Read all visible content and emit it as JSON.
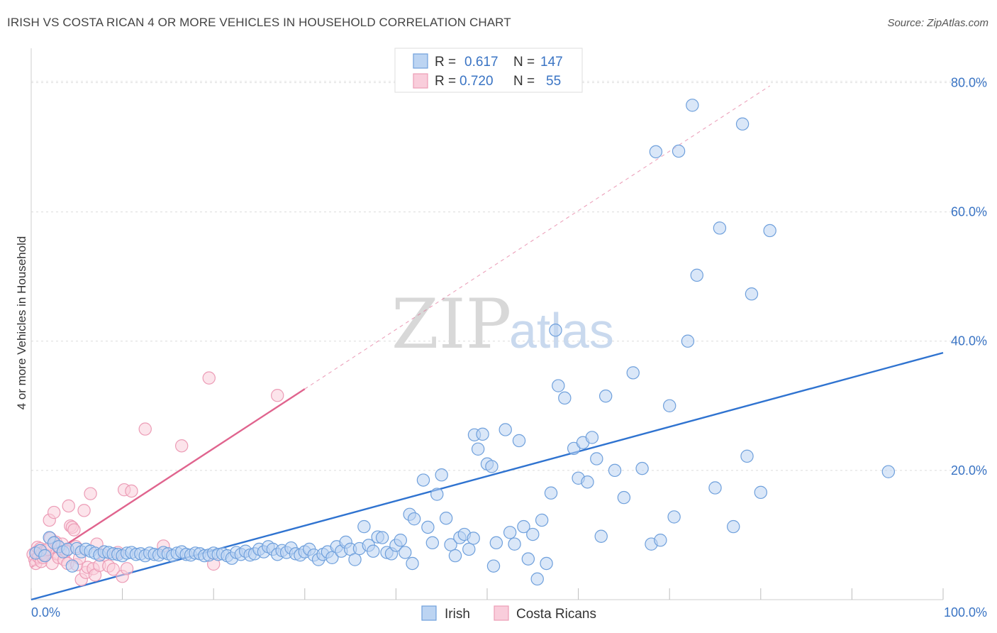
{
  "chart_data": {
    "type": "scatter",
    "title": "IRISH VS COSTA RICAN 4 OR MORE VEHICLES IN HOUSEHOLD CORRELATION CHART",
    "source": "Source: ZipAtlas.com",
    "ylabel": "4 or more Vehicles in Household",
    "xlabel": "",
    "xlim": [
      0,
      100
    ],
    "ylim": [
      0,
      84
    ],
    "x_tick_labels": [
      "0.0%",
      "100.0%"
    ],
    "y_tick_labels": [
      "20.0%",
      "40.0%",
      "60.0%",
      "80.0%"
    ],
    "y_ticks": [
      20,
      40,
      60,
      80
    ],
    "watermark": {
      "part1": "ZIP",
      "part2": "atlas"
    },
    "legend": {
      "r_label": "R =",
      "n_label": "N =",
      "entries": [
        {
          "r": "0.617",
          "n": "147"
        },
        {
          "r": "0.720",
          "n": "55"
        }
      ]
    },
    "series": [
      {
        "name": "Irish",
        "color": "#6fa0dc",
        "fill": "#bcd4f2",
        "line_color": "#2f73d0",
        "regression": {
          "x0": 0,
          "y0": 0,
          "x1": 100,
          "y1": 38.2,
          "dashed_to": null
        },
        "points": [
          [
            0.5,
            7.2
          ],
          [
            1,
            7.6
          ],
          [
            1.5,
            6.8
          ],
          [
            2,
            9.6
          ],
          [
            2.5,
            8.8
          ],
          [
            3,
            8.2
          ],
          [
            3.5,
            7.4
          ],
          [
            4,
            7.8
          ],
          [
            4.5,
            5.2
          ],
          [
            5,
            7.9
          ],
          [
            5.5,
            7.4
          ],
          [
            6,
            7.8
          ],
          [
            6.5,
            7.5
          ],
          [
            7,
            7.2
          ],
          [
            7.5,
            6.9
          ],
          [
            8,
            7.4
          ],
          [
            8.5,
            7.3
          ],
          [
            9,
            7.1
          ],
          [
            9.5,
            7.0
          ],
          [
            10,
            6.8
          ],
          [
            10.5,
            7.2
          ],
          [
            11,
            7.3
          ],
          [
            11.5,
            7.0
          ],
          [
            12,
            7.1
          ],
          [
            12.5,
            6.8
          ],
          [
            13,
            7.2
          ],
          [
            13.5,
            7.0
          ],
          [
            14,
            6.9
          ],
          [
            14.5,
            7.3
          ],
          [
            15,
            7.1
          ],
          [
            15.5,
            6.8
          ],
          [
            16,
            7.2
          ],
          [
            16.5,
            7.4
          ],
          [
            17,
            7.0
          ],
          [
            17.5,
            6.9
          ],
          [
            18,
            7.2
          ],
          [
            18.5,
            7.1
          ],
          [
            19,
            6.8
          ],
          [
            19.5,
            6.9
          ],
          [
            20,
            7.2
          ],
          [
            20.5,
            7.0
          ],
          [
            21,
            7.1
          ],
          [
            21.5,
            6.8
          ],
          [
            22,
            6.4
          ],
          [
            22.5,
            7.3
          ],
          [
            23,
            7.0
          ],
          [
            23.5,
            7.5
          ],
          [
            24,
            6.9
          ],
          [
            24.5,
            7.1
          ],
          [
            25,
            7.8
          ],
          [
            25.5,
            7.4
          ],
          [
            26,
            8.2
          ],
          [
            26.5,
            7.8
          ],
          [
            27,
            7.0
          ],
          [
            27.5,
            7.6
          ],
          [
            28,
            7.3
          ],
          [
            28.5,
            8.0
          ],
          [
            29,
            7.1
          ],
          [
            29.5,
            6.9
          ],
          [
            30,
            7.4
          ],
          [
            30.5,
            7.8
          ],
          [
            31,
            6.9
          ],
          [
            31.5,
            6.2
          ],
          [
            32,
            7.0
          ],
          [
            32.5,
            7.4
          ],
          [
            33,
            6.5
          ],
          [
            33.5,
            8.2
          ],
          [
            34,
            7.5
          ],
          [
            34.5,
            8.9
          ],
          [
            35,
            7.8
          ],
          [
            35.5,
            6.2
          ],
          [
            36,
            7.9
          ],
          [
            36.5,
            11.3
          ],
          [
            37,
            8.4
          ],
          [
            37.5,
            7.5
          ],
          [
            38,
            9.7
          ],
          [
            38.5,
            9.6
          ],
          [
            39,
            7.3
          ],
          [
            39.5,
            7.1
          ],
          [
            40,
            8.4
          ],
          [
            40.5,
            9.2
          ],
          [
            41,
            7.3
          ],
          [
            41.5,
            13.2
          ],
          [
            41.8,
            5.6
          ],
          [
            42,
            12.5
          ],
          [
            43,
            18.5
          ],
          [
            43.5,
            11.2
          ],
          [
            44,
            8.8
          ],
          [
            44.5,
            16.3
          ],
          [
            45,
            19.3
          ],
          [
            45.5,
            12.6
          ],
          [
            46,
            8.5
          ],
          [
            46.5,
            6.8
          ],
          [
            47,
            9.6
          ],
          [
            47.5,
            10.1
          ],
          [
            48,
            7.8
          ],
          [
            48.5,
            9.5
          ],
          [
            48.6,
            25.5
          ],
          [
            49,
            23.3
          ],
          [
            49.5,
            25.6
          ],
          [
            50,
            21.0
          ],
          [
            50.5,
            20.6
          ],
          [
            50.7,
            5.2
          ],
          [
            51,
            8.8
          ],
          [
            52,
            26.3
          ],
          [
            52.5,
            10.4
          ],
          [
            53,
            8.6
          ],
          [
            53.5,
            24.6
          ],
          [
            54,
            11.3
          ],
          [
            54.5,
            6.3
          ],
          [
            55,
            10.1
          ],
          [
            55.5,
            3.2
          ],
          [
            56,
            12.3
          ],
          [
            56.5,
            5.6
          ],
          [
            57,
            16.5
          ],
          [
            57.5,
            41.7
          ],
          [
            57.8,
            33.1
          ],
          [
            58.5,
            31.2
          ],
          [
            59.5,
            23.4
          ],
          [
            60,
            18.8
          ],
          [
            60.5,
            24.3
          ],
          [
            61,
            18.2
          ],
          [
            61.5,
            25.1
          ],
          [
            62,
            21.8
          ],
          [
            62.5,
            9.8
          ],
          [
            63,
            31.5
          ],
          [
            64,
            20.0
          ],
          [
            65,
            15.8
          ],
          [
            66,
            35.1
          ],
          [
            67,
            20.3
          ],
          [
            68,
            8.6
          ],
          [
            68.5,
            69.3
          ],
          [
            69,
            9.2
          ],
          [
            70,
            30.0
          ],
          [
            70.5,
            12.8
          ],
          [
            71,
            69.4
          ],
          [
            72,
            40.0
          ],
          [
            72.5,
            76.5
          ],
          [
            73,
            50.2
          ],
          [
            75,
            17.3
          ],
          [
            75.5,
            57.5
          ],
          [
            77,
            11.3
          ],
          [
            78,
            73.6
          ],
          [
            78.5,
            22.2
          ],
          [
            79,
            47.3
          ],
          [
            80,
            16.6
          ],
          [
            81,
            57.1
          ],
          [
            94,
            19.8
          ]
        ]
      },
      {
        "name": "Costa Ricans",
        "color": "#ec9cb6",
        "fill": "#f9cddb",
        "line_color": "#e0648e",
        "regression": {
          "x0": 0,
          "y0": 5.0,
          "x1": 30,
          "y1": 32.6,
          "dashed_to": [
            81,
            79.5
          ]
        },
        "points": [
          [
            0.2,
            7.0
          ],
          [
            0.4,
            6.2
          ],
          [
            0.5,
            5.6
          ],
          [
            0.6,
            7.4
          ],
          [
            0.7,
            8.1
          ],
          [
            0.8,
            6.6
          ],
          [
            1,
            7.9
          ],
          [
            1.1,
            5.9
          ],
          [
            1.2,
            7.2
          ],
          [
            1.3,
            6.5
          ],
          [
            1.5,
            7.6
          ],
          [
            1.6,
            6.9
          ],
          [
            1.8,
            7.8
          ],
          [
            2,
            12.3
          ],
          [
            2.1,
            9.5
          ],
          [
            2.3,
            5.6
          ],
          [
            2.5,
            13.5
          ],
          [
            2.7,
            8.9
          ],
          [
            2.8,
            7.1
          ],
          [
            3,
            6.5
          ],
          [
            3.2,
            7.9
          ],
          [
            3.4,
            8.6
          ],
          [
            3.6,
            6.2
          ],
          [
            3.8,
            7.5
          ],
          [
            4,
            5.6
          ],
          [
            4.1,
            14.5
          ],
          [
            4.3,
            11.4
          ],
          [
            4.5,
            11.2
          ],
          [
            4.7,
            10.8
          ],
          [
            4.9,
            8.2
          ],
          [
            5,
            5.4
          ],
          [
            5.3,
            6.4
          ],
          [
            5.5,
            3.1
          ],
          [
            5.8,
            13.8
          ],
          [
            6,
            4.2
          ],
          [
            6.2,
            5.0
          ],
          [
            6.5,
            16.4
          ],
          [
            6.8,
            4.8
          ],
          [
            7,
            3.8
          ],
          [
            7.2,
            8.6
          ],
          [
            7.5,
            5.3
          ],
          [
            8,
            6.9
          ],
          [
            8.5,
            5.2
          ],
          [
            9,
            4.7
          ],
          [
            9.5,
            7.3
          ],
          [
            10,
            3.6
          ],
          [
            10.2,
            17.0
          ],
          [
            10.5,
            4.8
          ],
          [
            11,
            16.8
          ],
          [
            12.5,
            26.4
          ],
          [
            14.5,
            8.3
          ],
          [
            16.5,
            23.8
          ],
          [
            19.5,
            34.3
          ],
          [
            20,
            5.5
          ],
          [
            27,
            31.6
          ]
        ]
      }
    ]
  }
}
